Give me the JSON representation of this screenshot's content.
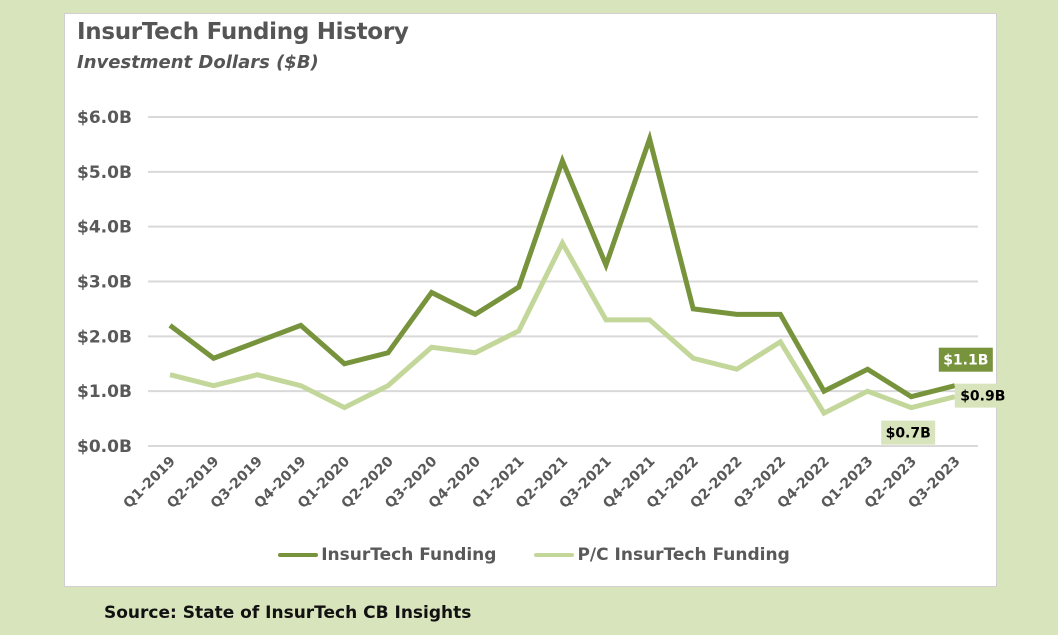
{
  "title": "InsurTech Funding History",
  "subtitle": "Investment Dollars ($B)",
  "source": "Source: State of InsurTech CB Insights",
  "colors": {
    "background": "#D8E4BC",
    "insurtech": "#77933C",
    "pc_insurtech": "#C4D79B",
    "grid": "#D9D9D9",
    "axis_text": "#595959"
  },
  "chart_data": {
    "type": "line",
    "title": "InsurTech Funding History",
    "subtitle": "Investment Dollars ($B)",
    "xlabel": "",
    "ylabel": "",
    "ylim": [
      0,
      6
    ],
    "yticks": [
      0,
      1,
      2,
      3,
      4,
      5,
      6
    ],
    "ytick_labels": [
      "$0.0B",
      "$1.0B",
      "$2.0B",
      "$3.0B",
      "$4.0B",
      "$5.0B",
      "$6.0B"
    ],
    "grid": true,
    "legend_position": "bottom",
    "categories": [
      "Q1-2019",
      "Q2-2019",
      "Q3-2019",
      "Q4-2019",
      "Q1-2020",
      "Q2-2020",
      "Q3-2020",
      "Q4-2020",
      "Q1-2021",
      "Q2-2021",
      "Q3-2021",
      "Q4-2021",
      "Q1-2022",
      "Q2-2022",
      "Q3-2022",
      "Q4-2022",
      "Q1-2023",
      "Q2-2023",
      "Q3-2023"
    ],
    "series": [
      {
        "name": "InsurTech Funding",
        "color": "#77933C",
        "values": [
          2.2,
          1.6,
          1.9,
          2.2,
          1.5,
          1.7,
          2.8,
          2.4,
          2.9,
          5.2,
          3.3,
          5.6,
          2.5,
          2.4,
          2.4,
          1.0,
          1.4,
          0.9,
          1.1
        ]
      },
      {
        "name": "P/C InsurTech Funding",
        "color": "#C4D79B",
        "values": [
          1.3,
          1.1,
          1.3,
          1.1,
          0.7,
          1.1,
          1.8,
          1.7,
          2.1,
          3.7,
          2.3,
          2.3,
          1.6,
          1.4,
          1.9,
          0.6,
          1.0,
          0.7,
          0.9
        ]
      }
    ],
    "annotations": [
      {
        "series": "InsurTech Funding",
        "category": "Q3-2023",
        "text": "$1.1B",
        "style": "dark"
      },
      {
        "series": "P/C InsurTech Funding",
        "category": "Q3-2023",
        "text": "$0.9B",
        "style": "light"
      },
      {
        "series": "P/C InsurTech Funding",
        "category": "Q2-2023",
        "text": "$0.7B",
        "style": "light"
      }
    ]
  }
}
